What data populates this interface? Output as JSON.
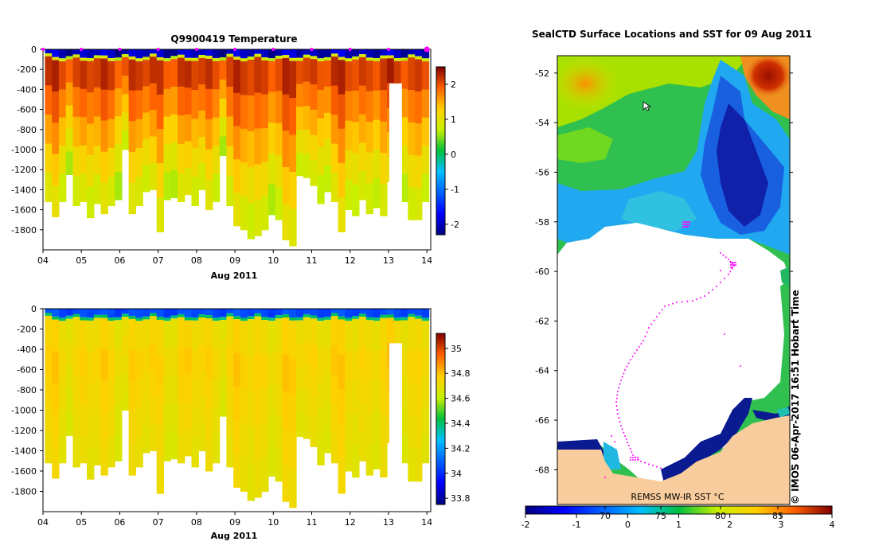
{
  "chart_data": [
    {
      "type": "heatmap",
      "id": "temperature",
      "title": "Q9900419  Temperature",
      "xlabel": "Aug 2011",
      "x_tick_labels": [
        "04",
        "05",
        "06",
        "07",
        "08",
        "09",
        "10",
        "11",
        "12",
        "13",
        "14"
      ],
      "xlim": [
        4,
        14.1
      ],
      "ylim": [
        -2000,
        0
      ],
      "y_tick_values": [
        0,
        -200,
        -400,
        -600,
        -800,
        -1000,
        -1200,
        -1400,
        -1600,
        -1800
      ],
      "colorbar": {
        "min": -2.3,
        "max": 2.5,
        "tick_values": [
          -2,
          -1,
          0,
          1,
          2
        ]
      },
      "surface_markers_x": [
        4,
        5,
        6,
        7,
        8,
        9,
        10,
        11,
        12,
        13,
        14
      ],
      "profile_start": 4.05,
      "profile_end": 14.05,
      "n_profiles": 55,
      "profile_bottom_depth": [
        -1520,
        -1670,
        -1520,
        -1250,
        -1560,
        -1520,
        -1680,
        -1540,
        -1640,
        -1560,
        -1500,
        -1000,
        -1640,
        -1560,
        -1420,
        -1400,
        -1820,
        -1500,
        -1480,
        -1520,
        -1450,
        -1560,
        -1400,
        -1600,
        -1520,
        -1060,
        -1560,
        -1760,
        -1800,
        -1890,
        -1860,
        -1800,
        -1650,
        -1700,
        -1900,
        -1960,
        -1260,
        -1280,
        -1360,
        -1540,
        -1420,
        -1520,
        -1820,
        -1600,
        -1660,
        -1500,
        -1640,
        -1580,
        -1660,
        -1320,
        -1720,
        -1520,
        -1700,
        -1700,
        -1520
      ],
      "profile_gaps": [
        {
          "x0": 13.02,
          "x1": 13.35,
          "top": -340
        }
      ],
      "surface_value": -2.0,
      "mixed_value": 0.8,
      "deep_value": 2.1
    },
    {
      "type": "heatmap",
      "id": "salinity",
      "title": "",
      "xlabel": "Aug 2011",
      "x_tick_labels": [
        "04",
        "05",
        "06",
        "07",
        "08",
        "09",
        "10",
        "11",
        "12",
        "13",
        "14"
      ],
      "xlim": [
        4,
        14.1
      ],
      "ylim": [
        -2000,
        0
      ],
      "y_tick_values": [
        0,
        -200,
        -400,
        -600,
        -800,
        -1000,
        -1200,
        -1400,
        -1600,
        -1800
      ],
      "colorbar": {
        "min": 33.75,
        "max": 35.12,
        "tick_values": [
          33.8,
          34,
          34.2,
          34.4,
          34.6,
          34.8,
          35
        ]
      },
      "profile_start": 4.05,
      "profile_end": 14.05,
      "n_profiles": 55,
      "profile_bottom_depth": [
        -1520,
        -1670,
        -1520,
        -1250,
        -1560,
        -1520,
        -1680,
        -1540,
        -1640,
        -1560,
        -1500,
        -1000,
        -1640,
        -1560,
        -1420,
        -1400,
        -1820,
        -1500,
        -1480,
        -1520,
        -1450,
        -1560,
        -1400,
        -1600,
        -1520,
        -1060,
        -1560,
        -1760,
        -1800,
        -1890,
        -1860,
        -1800,
        -1650,
        -1700,
        -1900,
        -1960,
        -1260,
        -1280,
        -1360,
        -1540,
        -1420,
        -1520,
        -1820,
        -1600,
        -1660,
        -1500,
        -1640,
        -1580,
        -1660,
        -1320,
        -1720,
        -1520,
        -1700,
        -1700,
        -1520
      ],
      "profile_gaps": [
        {
          "x0": 13.02,
          "x1": 13.35,
          "top": -340
        }
      ],
      "surface_value": 34.05,
      "mixed_value": 34.4,
      "deep_value": 34.78
    },
    {
      "type": "heatmap",
      "id": "sst_map",
      "title": "SealCTD Surface Locations and SST for 09 Aug 2011",
      "ylim": [
        -69.4,
        -51.3
      ],
      "y_tick_values": [
        -52,
        -54,
        -56,
        -58,
        -60,
        -62,
        -64,
        -66,
        -68
      ],
      "colorbar": {
        "min": -2,
        "max": 4,
        "tick_values": [
          -2,
          -1,
          0,
          1,
          2,
          3,
          4
        ]
      },
      "colorbar_secondary_ticks": [
        "70",
        "75",
        "80",
        "85"
      ],
      "source_label": "REMSS MW-IR SST °C",
      "credit": "© IMOS 06-Apr-2017 16:51 Hobart Time"
    }
  ],
  "colors": {
    "land": "#f8cc9c",
    "track": "#ff00ff",
    "axis": "#000000"
  }
}
